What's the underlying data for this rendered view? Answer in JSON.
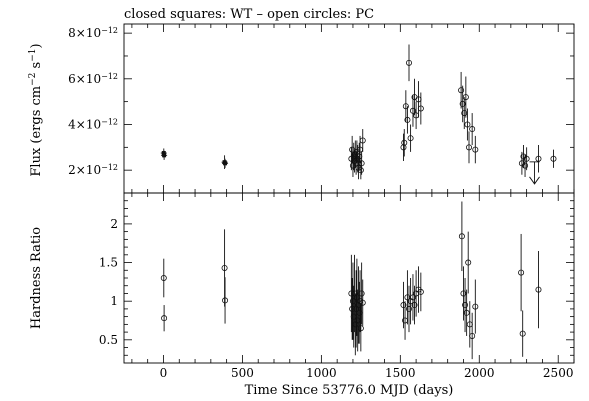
{
  "chart_data": [
    {
      "type": "scatter",
      "panel": "top",
      "title": "closed squares: WT – open circles: PC",
      "xlabel": "",
      "ylabel": "Flux (ergs cm⁻² s⁻¹)",
      "ylabel_main": "Flux (ergs cm",
      "ylabel_sup1": "−2",
      "ylabel_mid": " s",
      "ylabel_sup2": "−1",
      "ylabel_end": ")",
      "xlim": [
        -250,
        2600
      ],
      "ylim": [
        1.0,
        8.4
      ],
      "yunit_note": "values in units of 1e-12",
      "y_ticks": [
        {
          "value": 2,
          "mant": "2×10",
          "exp": "−12"
        },
        {
          "value": 4,
          "mant": "4×10",
          "exp": "−12"
        },
        {
          "value": 6,
          "mant": "6×10",
          "exp": "−12"
        },
        {
          "value": 8,
          "mant": "8×10",
          "exp": "−12"
        }
      ],
      "points": [
        {
          "x": 2,
          "y": 2.75,
          "e": 0.2,
          "s": "sq"
        },
        {
          "x": 4,
          "y": 2.65,
          "e": 0.2,
          "s": "sq"
        },
        {
          "x": 387,
          "y": 2.35,
          "e": 0.3,
          "s": "sq"
        },
        {
          "x": 390,
          "y": 2.3,
          "e": 0.2,
          "s": "sq"
        },
        {
          "x": 1190,
          "y": 2.5,
          "e": 0.5,
          "s": "c"
        },
        {
          "x": 1195,
          "y": 2.9,
          "e": 0.6,
          "s": "c"
        },
        {
          "x": 1200,
          "y": 2.2,
          "e": 0.5,
          "s": "c"
        },
        {
          "x": 1205,
          "y": 2.6,
          "e": 0.6,
          "s": "c"
        },
        {
          "x": 1210,
          "y": 2.4,
          "e": 0.5,
          "s": "c"
        },
        {
          "x": 1215,
          "y": 2.7,
          "e": 0.6,
          "s": "c"
        },
        {
          "x": 1220,
          "y": 2.3,
          "e": 0.5,
          "s": "c"
        },
        {
          "x": 1225,
          "y": 2.8,
          "e": 0.5,
          "s": "c"
        },
        {
          "x": 1230,
          "y": 2.5,
          "e": 0.6,
          "s": "c"
        },
        {
          "x": 1235,
          "y": 2.1,
          "e": 0.5,
          "s": "c"
        },
        {
          "x": 1240,
          "y": 2.6,
          "e": 0.6,
          "s": "c"
        },
        {
          "x": 1245,
          "y": 2.9,
          "e": 0.6,
          "s": "c"
        },
        {
          "x": 1250,
          "y": 2.0,
          "e": 0.4,
          "s": "c"
        },
        {
          "x": 1255,
          "y": 2.3,
          "e": 0.5,
          "s": "c"
        },
        {
          "x": 1262,
          "y": 3.3,
          "e": 0.5,
          "s": "c"
        },
        {
          "x": 1520,
          "y": 3.0,
          "e": 0.6,
          "s": "c"
        },
        {
          "x": 1525,
          "y": 3.2,
          "e": 0.6,
          "s": "c"
        },
        {
          "x": 1535,
          "y": 4.8,
          "e": 0.7,
          "s": "c"
        },
        {
          "x": 1545,
          "y": 4.2,
          "e": 0.6,
          "s": "c"
        },
        {
          "x": 1555,
          "y": 6.7,
          "e": 0.8,
          "s": "c"
        },
        {
          "x": 1565,
          "y": 3.4,
          "e": 0.6,
          "s": "c"
        },
        {
          "x": 1580,
          "y": 4.6,
          "e": 0.7,
          "s": "c"
        },
        {
          "x": 1590,
          "y": 5.2,
          "e": 0.8,
          "s": "c"
        },
        {
          "x": 1600,
          "y": 4.4,
          "e": 0.6,
          "s": "c"
        },
        {
          "x": 1615,
          "y": 5.1,
          "e": 0.8,
          "s": "c"
        },
        {
          "x": 1630,
          "y": 4.7,
          "e": 0.7,
          "s": "c"
        },
        {
          "x": 1885,
          "y": 5.5,
          "e": 0.8,
          "s": "c"
        },
        {
          "x": 1895,
          "y": 4.9,
          "e": 0.8,
          "s": "c"
        },
        {
          "x": 1905,
          "y": 4.5,
          "e": 0.7,
          "s": "c"
        },
        {
          "x": 1915,
          "y": 5.2,
          "e": 0.9,
          "s": "c"
        },
        {
          "x": 1925,
          "y": 4.0,
          "e": 0.7,
          "s": "c"
        },
        {
          "x": 1935,
          "y": 3.0,
          "e": 0.7,
          "s": "c"
        },
        {
          "x": 1955,
          "y": 3.8,
          "e": 0.7,
          "s": "c"
        },
        {
          "x": 1975,
          "y": 2.9,
          "e": 0.6,
          "s": "c"
        },
        {
          "x": 2270,
          "y": 2.3,
          "e": 0.5,
          "s": "c"
        },
        {
          "x": 2280,
          "y": 2.6,
          "e": 0.5,
          "s": "c"
        },
        {
          "x": 2290,
          "y": 2.2,
          "e": 0.5,
          "s": "c"
        },
        {
          "x": 2300,
          "y": 2.5,
          "e": 0.5,
          "s": "c"
        },
        {
          "x": 2375,
          "y": 2.5,
          "e": 0.6,
          "s": "c"
        },
        {
          "x": 2470,
          "y": 2.5,
          "e": 0.4,
          "s": "c"
        }
      ],
      "upper_limits": [
        {
          "x": 2350,
          "y": 1.4
        }
      ]
    },
    {
      "type": "scatter",
      "panel": "bottom",
      "xlabel": "Time Since 53776.0 MJD (days)",
      "ylabel": "Hardness Ratio",
      "xlim": [
        -250,
        2600
      ],
      "ylim": [
        0.2,
        2.4
      ],
      "x_ticks": [
        "0",
        "500",
        "1000",
        "1500",
        "2000",
        "2500"
      ],
      "y_ticks": [
        "0.5",
        "1",
        "1.5",
        "2"
      ],
      "points": [
        {
          "x": 2,
          "y": 1.3,
          "e": 0.25,
          "s": "c"
        },
        {
          "x": 4,
          "y": 0.78,
          "e": 0.17,
          "s": "c"
        },
        {
          "x": 387,
          "y": 1.43,
          "e": 0.5,
          "s": "c"
        },
        {
          "x": 390,
          "y": 1.01,
          "e": 0.3,
          "s": "c"
        },
        {
          "x": 1190,
          "y": 1.1,
          "e": 0.5,
          "s": "c"
        },
        {
          "x": 1195,
          "y": 0.9,
          "e": 0.4,
          "s": "c"
        },
        {
          "x": 1200,
          "y": 1.0,
          "e": 0.5,
          "s": "c"
        },
        {
          "x": 1205,
          "y": 0.8,
          "e": 0.4,
          "s": "c"
        },
        {
          "x": 1210,
          "y": 1.1,
          "e": 0.5,
          "s": "c"
        },
        {
          "x": 1215,
          "y": 0.7,
          "e": 0.4,
          "s": "c"
        },
        {
          "x": 1220,
          "y": 0.9,
          "e": 0.5,
          "s": "c"
        },
        {
          "x": 1225,
          "y": 1.05,
          "e": 0.5,
          "s": "c"
        },
        {
          "x": 1230,
          "y": 0.75,
          "e": 0.4,
          "s": "c"
        },
        {
          "x": 1235,
          "y": 0.95,
          "e": 0.5,
          "s": "c"
        },
        {
          "x": 1240,
          "y": 0.85,
          "e": 0.4,
          "s": "c"
        },
        {
          "x": 1245,
          "y": 1.0,
          "e": 0.4,
          "s": "c"
        },
        {
          "x": 1250,
          "y": 0.65,
          "e": 0.3,
          "s": "c"
        },
        {
          "x": 1255,
          "y": 1.1,
          "e": 0.4,
          "s": "c"
        },
        {
          "x": 1262,
          "y": 0.98,
          "e": 0.3,
          "s": "c"
        },
        {
          "x": 1520,
          "y": 0.95,
          "e": 0.3,
          "s": "c"
        },
        {
          "x": 1530,
          "y": 0.75,
          "e": 0.25,
          "s": "c"
        },
        {
          "x": 1545,
          "y": 1.05,
          "e": 0.35,
          "s": "c"
        },
        {
          "x": 1555,
          "y": 0.9,
          "e": 0.3,
          "s": "c"
        },
        {
          "x": 1565,
          "y": 1.0,
          "e": 0.3,
          "s": "c"
        },
        {
          "x": 1580,
          "y": 1.05,
          "e": 0.3,
          "s": "c"
        },
        {
          "x": 1590,
          "y": 0.95,
          "e": 0.25,
          "s": "c"
        },
        {
          "x": 1600,
          "y": 1.1,
          "e": 0.3,
          "s": "c"
        },
        {
          "x": 1615,
          "y": 1.15,
          "e": 0.3,
          "s": "c"
        },
        {
          "x": 1630,
          "y": 1.12,
          "e": 0.25,
          "s": "c"
        },
        {
          "x": 1890,
          "y": 1.84,
          "e": 0.45,
          "s": "c"
        },
        {
          "x": 1900,
          "y": 1.1,
          "e": 0.35,
          "s": "c"
        },
        {
          "x": 1910,
          "y": 0.95,
          "e": 0.35,
          "s": "c"
        },
        {
          "x": 1920,
          "y": 0.85,
          "e": 0.3,
          "s": "c"
        },
        {
          "x": 1930,
          "y": 1.5,
          "e": 0.4,
          "s": "c"
        },
        {
          "x": 1940,
          "y": 0.7,
          "e": 0.3,
          "s": "c"
        },
        {
          "x": 1955,
          "y": 0.55,
          "e": 0.3,
          "s": "c"
        },
        {
          "x": 1975,
          "y": 0.93,
          "e": 0.35,
          "s": "c"
        },
        {
          "x": 2265,
          "y": 1.37,
          "e": 0.5,
          "s": "c"
        },
        {
          "x": 2275,
          "y": 0.58,
          "e": 0.3,
          "s": "c"
        },
        {
          "x": 2375,
          "y": 1.15,
          "e": 0.5,
          "s": "c"
        }
      ]
    }
  ]
}
